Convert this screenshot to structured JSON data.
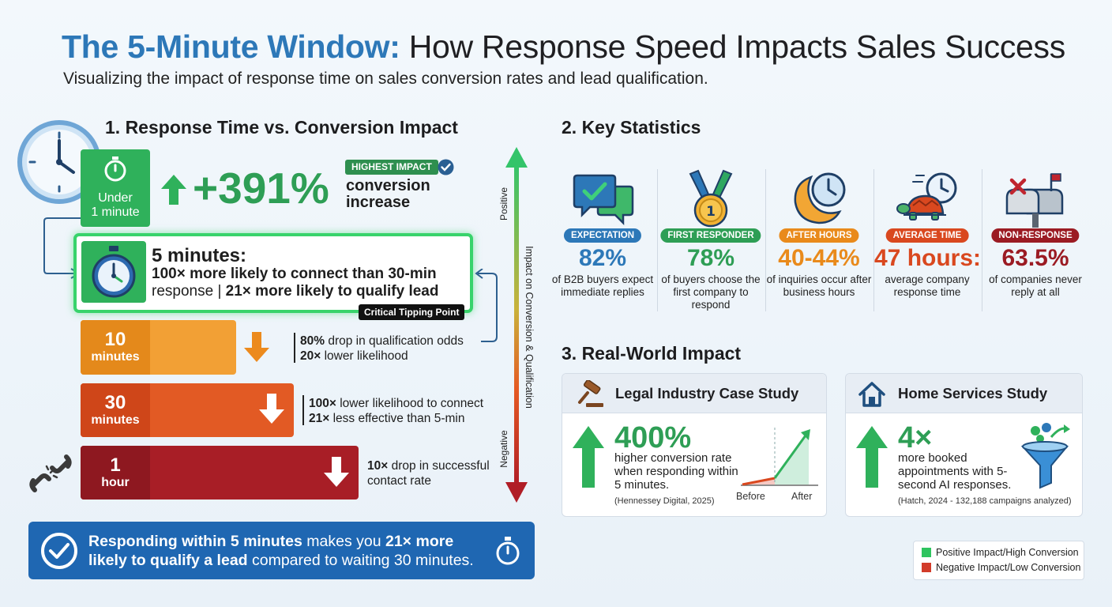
{
  "header": {
    "title_highlight": "The 5-Minute Window:",
    "title_rest": "How Response Speed Impacts Sales Success",
    "subtitle": "Visualizing the impact of response time on sales conversion rates and lead qualification."
  },
  "section1": {
    "title": "1. Response Time vs. Conversion Impact",
    "under1": {
      "label_line1": "Under",
      "label_line2": "1 minute",
      "big_value": "+391%",
      "badge": "HIGHEST IMPACT",
      "desc_line1": "conversion",
      "desc_line2": "increase"
    },
    "five": {
      "title": "5 minutes:",
      "line1": "100× more likely to connect than 30-min",
      "line2a": "response |",
      "line2b": "21× more likely to qualify lead",
      "tipping": "Critical Tipping Point"
    },
    "ten": {
      "label_line1": "10",
      "label_line2": "minutes",
      "note_line1_b": "80%",
      "note_line1_rest": " drop in qualification odds",
      "note_line2_b": "20×",
      "note_line2_rest": " lower likelihood"
    },
    "thirty": {
      "label_line1": "30",
      "label_line2": "minutes",
      "note_line1_b": "100×",
      "note_line1_rest": " lower likelihood to connect",
      "note_line2_b": "21×",
      "note_line2_rest": " less effective than 5-min"
    },
    "hour": {
      "label_line1": "1",
      "label_line2": "hour",
      "note_line1_b": "10×",
      "note_line1_rest": " drop in successful",
      "note_line2": "contact rate"
    },
    "axis": {
      "positive": "Positive",
      "negative": "Negative",
      "label": "Impact on Conversion & Qualification"
    },
    "callout": {
      "b1": "Responding within 5 minutes",
      "t1": " makes you ",
      "b2": "21× more",
      "b3": "likely to qualify a lead",
      "t2": " compared to waiting 30 minutes."
    }
  },
  "section2": {
    "title": "2. Key Statistics",
    "stats": [
      {
        "icon": "chat-check-icon",
        "tag": "EXPECTATION",
        "value": "82%",
        "desc": "of B2B buyers expect immediate replies",
        "color": "#2d78b8"
      },
      {
        "icon": "medal-icon",
        "tag": "FIRST RESPONDER",
        "value": "78%",
        "desc": "of buyers choose the first company to respond",
        "color": "#2e9e55"
      },
      {
        "icon": "moon-clock-icon",
        "tag": "AFTER HOURS",
        "value": "40-44%",
        "desc": "of inquiries occur after business hours",
        "color": "#e98a1b"
      },
      {
        "icon": "turtle-clock-icon",
        "tag": "AVERAGE TIME",
        "value": "47 hours:",
        "desc": "average company response time",
        "color": "#d9481f"
      },
      {
        "icon": "mailbox-x-icon",
        "tag": "NON-RESPONSE",
        "value": "63.5%",
        "desc": "of companies never reply at all",
        "color": "#9b1b23"
      }
    ]
  },
  "section3": {
    "title": "3. Real-World Impact",
    "legal": {
      "title": "Legal Industry Case Study",
      "value": "400%",
      "desc": "higher conversion rate when responding within 5 minutes.",
      "source": "(Hennessey Digital, 2025)",
      "before": "Before",
      "after": "After"
    },
    "home": {
      "title": "Home Services Study",
      "value": "4×",
      "desc": "more booked appointments with 5-second AI responses.",
      "source": "(Hatch, 2024 - 132,188 campaigns analyzed)"
    }
  },
  "legend": {
    "positive": "Positive Impact/High Conversion",
    "negative": "Negative Impact/Low Conversion"
  },
  "colors": {
    "blue": "#2d78b8",
    "green": "#2e9e55",
    "orange": "#e98a1b",
    "red_orange": "#d9481f",
    "dark_red": "#9b1b23"
  }
}
